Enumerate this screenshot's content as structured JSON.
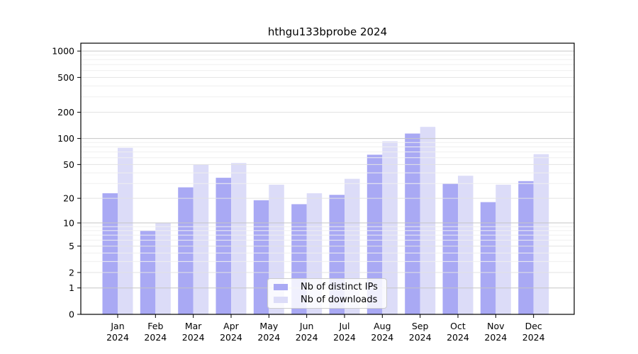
{
  "window": {
    "background": "#ffffff"
  },
  "chart_data": {
    "type": "bar",
    "title": "hthgu133bprobe 2024",
    "categories": [
      "Jan",
      "Feb",
      "Mar",
      "Apr",
      "May",
      "Jun",
      "Jul",
      "Aug",
      "Sep",
      "Oct",
      "Nov",
      "Dec"
    ],
    "x_tick_year": "2024",
    "series": [
      {
        "name": "Nb of distinct IPs",
        "color": "#a9a9f4",
        "values": [
          23,
          8,
          27,
          35,
          19,
          17,
          22,
          65,
          114,
          30,
          18,
          32
        ]
      },
      {
        "name": "Nb of downloads",
        "color": "#dcdcf8",
        "values": [
          78,
          10,
          50,
          52,
          29,
          23,
          34,
          93,
          136,
          37,
          29,
          66
        ]
      }
    ],
    "y_axis": {
      "ticks": [
        1000,
        500,
        200,
        100,
        50,
        20,
        10,
        5,
        2,
        1,
        0
      ],
      "scale": "log10(value+1)",
      "max": 1230
    },
    "grid": {
      "major_values": [
        1000,
        100,
        10,
        1
      ],
      "major_color": "#c6c6c6",
      "mid_color": "#e3e3e3",
      "minor_color": "#efefef",
      "minor_multipliers": [
        3,
        4,
        6,
        7,
        8,
        9
      ]
    },
    "legend_position": "inside-bottom-center",
    "xlabel": "",
    "ylabel": ""
  }
}
